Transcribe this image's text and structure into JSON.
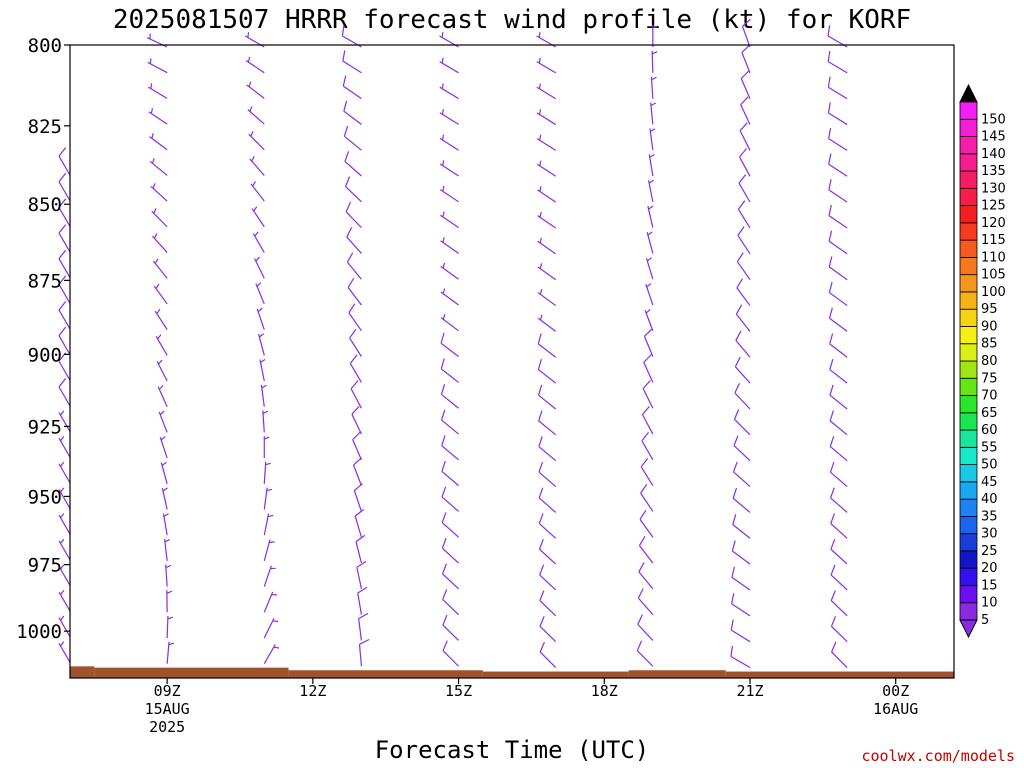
{
  "chart_data": {
    "type": "wind-barb-profile",
    "title": "2025081507 HRRR forecast wind profile (kt) for KORF",
    "xlabel": "Forecast Time (UTC)",
    "ylabel": "",
    "units": "kt",
    "y_scale": "pressure (hPa), inverted",
    "ylim": [
      1018,
      800
    ],
    "y_ticks": [
      800,
      825,
      850,
      875,
      900,
      925,
      950,
      975,
      1000
    ],
    "x_range_hours": [
      7,
      25.2
    ],
    "x_ticks": [
      {
        "hour": 9,
        "label": "09Z",
        "sub": [
          "15AUG",
          "2025"
        ]
      },
      {
        "hour": 12,
        "label": "12Z",
        "sub": []
      },
      {
        "hour": 15,
        "label": "15Z",
        "sub": []
      },
      {
        "hour": 18,
        "label": "18Z",
        "sub": []
      },
      {
        "hour": 21,
        "label": "21Z",
        "sub": []
      },
      {
        "hour": 24,
        "label": "00Z",
        "sub": [
          "16AUG"
        ]
      }
    ],
    "forecast_hours": [
      7,
      9,
      11,
      13,
      15,
      17,
      19,
      21,
      23
    ],
    "barb_profiles": [
      {
        "hour": 7,
        "top": 840,
        "base_dir": 330,
        "top_dir": 330,
        "base_spd": 5,
        "top_spd": 10
      },
      {
        "hour": 9,
        "top": 800,
        "base_dir": 5,
        "top_dir": 295,
        "base_spd": 5,
        "top_spd": 5
      },
      {
        "hour": 11,
        "top": 800,
        "base_dir": 30,
        "top_dir": 300,
        "base_spd": 5,
        "top_spd": 5
      },
      {
        "hour": 13,
        "top": 800,
        "base_dir": 355,
        "top_dir": 300,
        "base_spd": 10,
        "top_spd": 10
      },
      {
        "hour": 15,
        "top": 800,
        "base_dir": 315,
        "top_dir": 300,
        "base_spd": 10,
        "top_spd": 5
      },
      {
        "hour": 17,
        "top": 800,
        "base_dir": 315,
        "top_dir": 300,
        "base_spd": 10,
        "top_spd": 5
      },
      {
        "hour": 19,
        "top": 800,
        "base_dir": 315,
        "top_dir": 0,
        "base_spd": 10,
        "top_spd": 5
      },
      {
        "hour": 21,
        "top": 800,
        "base_dir": 300,
        "top_dir": 340,
        "base_spd": 10,
        "top_spd": 10
      },
      {
        "hour": 23,
        "top": 800,
        "base_dir": 315,
        "top_dir": 300,
        "base_spd": 10,
        "top_spd": 10
      }
    ],
    "surface_pressure": [
      {
        "from_hour": 7.0,
        "to_hour": 7.5,
        "p": 1013.5
      },
      {
        "from_hour": 7.5,
        "to_hour": 11.5,
        "p": 1014.0
      },
      {
        "from_hour": 11.5,
        "to_hour": 15.5,
        "p": 1015.0
      },
      {
        "from_hour": 15.5,
        "to_hour": 18.5,
        "p": 1015.5
      },
      {
        "from_hour": 18.5,
        "to_hour": 20.5,
        "p": 1015.0
      },
      {
        "from_hour": 20.5,
        "to_hour": 25.2,
        "p": 1015.5
      }
    ],
    "ground_color": "#a0522d",
    "barb_color": "#8a2be2",
    "colorbar": {
      "labels": [
        "5",
        "10",
        "15",
        "20",
        "25",
        "30",
        "35",
        "40",
        "45",
        "50",
        "55",
        "60",
        "65",
        "70",
        "75",
        "80",
        "85",
        "90",
        "95",
        "100",
        "105",
        "110",
        "115",
        "120",
        "125",
        "130",
        "135",
        "140",
        "145",
        "150"
      ],
      "colors": [
        "#8a2be2",
        "#6a10f0",
        "#3410f0",
        "#1414c8",
        "#1a3cd8",
        "#1a64f0",
        "#1e82f5",
        "#1aa8f5",
        "#1ac8e6",
        "#1ae6c8",
        "#1ae6a0",
        "#1ae650",
        "#28e628",
        "#64e614",
        "#a0e614",
        "#dcef14",
        "#f5f014",
        "#f5d214",
        "#f5b414",
        "#f5961e",
        "#f5781e",
        "#f55a1e",
        "#f53c1e",
        "#f51e1e",
        "#f51e46",
        "#f51e64",
        "#f51e8c",
        "#f51eaa",
        "#f51ed2",
        "#f51ef5"
      ],
      "top_arrow_color": "#000000",
      "bottom_arrow_color": "#8a2be2"
    },
    "credit": "coolwx.com/models"
  }
}
